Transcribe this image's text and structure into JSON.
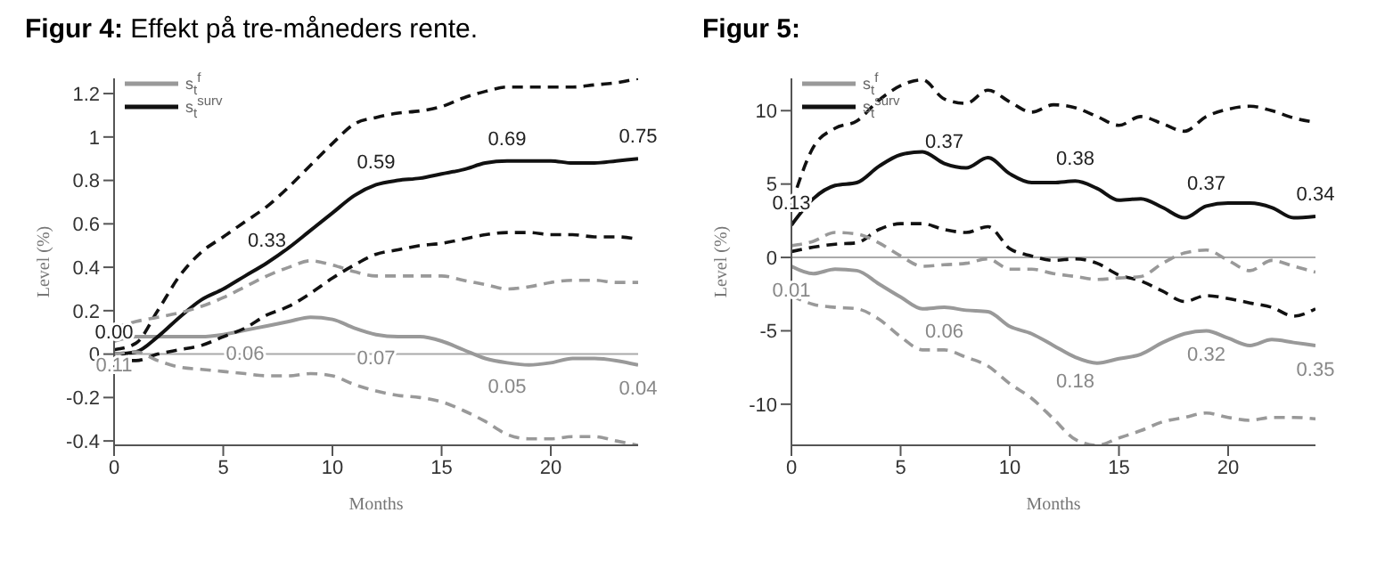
{
  "chart_data": [
    {
      "type": "line",
      "title": "Figur 4: Effekt på tre-måneders rente.",
      "xlabel": "Months",
      "ylabel": "Level (%)",
      "x": [
        0,
        1,
        2,
        3,
        4,
        5,
        6,
        7,
        8,
        9,
        10,
        11,
        12,
        13,
        14,
        15,
        16,
        17,
        18,
        19,
        20,
        21,
        22,
        23,
        24
      ],
      "xlim": [
        0,
        24
      ],
      "xticks": [
        0,
        5,
        10,
        15,
        20
      ],
      "ylim": [
        -0.42,
        1.27
      ],
      "yticks": [
        -0.4,
        -0.2,
        0,
        0.2,
        0.4,
        0.6,
        0.8,
        1,
        1.2
      ],
      "grid": false,
      "legend": "top left",
      "marker": "none",
      "tick_labels": "xy",
      "series": [
        {
          "name": "s$_{t}$$^{f}$",
          "color": "#999999",
          "line_style": "solid",
          "values": [
            0.06,
            0.08,
            0.08,
            0.08,
            0.08,
            0.09,
            0.11,
            0.13,
            0.15,
            0.17,
            0.16,
            0.12,
            0.09,
            0.08,
            0.08,
            0.06,
            0.02,
            -0.02,
            -0.04,
            -0.05,
            -0.04,
            -0.02,
            -0.02,
            -0.03,
            -0.05
          ]
        },
        {
          "name": "s$_{t}$$^{surv}$",
          "color": "#111111",
          "line_style": "solid",
          "values": [
            0.0,
            0.01,
            0.08,
            0.17,
            0.25,
            0.3,
            0.36,
            0.42,
            0.49,
            0.57,
            0.65,
            0.73,
            0.78,
            0.8,
            0.81,
            0.83,
            0.85,
            0.88,
            0.89,
            0.89,
            0.89,
            0.88,
            0.88,
            0.89,
            0.9
          ]
        },
        {
          "color": "#111111",
          "line_style": "dashed",
          "values": [
            0.02,
            0.05,
            0.2,
            0.36,
            0.47,
            0.54,
            0.61,
            0.68,
            0.77,
            0.87,
            0.97,
            1.06,
            1.09,
            1.11,
            1.12,
            1.14,
            1.18,
            1.21,
            1.23,
            1.23,
            1.23,
            1.23,
            1.24,
            1.25,
            1.27
          ]
        },
        {
          "color": "#111111",
          "line_style": "dashed",
          "values": [
            -0.03,
            -0.03,
            0.0,
            0.02,
            0.04,
            0.08,
            0.12,
            0.18,
            0.22,
            0.28,
            0.35,
            0.41,
            0.46,
            0.48,
            0.5,
            0.51,
            0.53,
            0.55,
            0.56,
            0.56,
            0.55,
            0.55,
            0.54,
            0.54,
            0.53
          ]
        },
        {
          "color": "#999999",
          "line_style": "dashed",
          "values": [
            0.12,
            0.15,
            0.17,
            0.19,
            0.22,
            0.26,
            0.31,
            0.36,
            0.4,
            0.43,
            0.41,
            0.38,
            0.36,
            0.36,
            0.36,
            0.36,
            0.34,
            0.32,
            0.3,
            0.31,
            0.33,
            0.34,
            0.34,
            0.33,
            0.33
          ]
        },
        {
          "color": "#999999",
          "line_style": "dashed",
          "values": [
            0.0,
            0.01,
            -0.03,
            -0.06,
            -0.07,
            -0.08,
            -0.09,
            -0.1,
            -0.1,
            -0.09,
            -0.1,
            -0.14,
            -0.17,
            -0.19,
            -0.2,
            -0.22,
            -0.26,
            -0.31,
            -0.37,
            -0.39,
            -0.39,
            -0.38,
            -0.38,
            -0.4,
            -0.42
          ]
        }
      ],
      "ref_lines": [
        {
          "axis": "y",
          "value": 0,
          "color": "#aaaaaa"
        }
      ],
      "annotations": [
        {
          "text": "0.00",
          "x": 0,
          "y": 0.0
        },
        {
          "text": "0.11",
          "x": 0,
          "y": 0.06
        },
        {
          "text": "0.33",
          "x": 7,
          "y": 0.42
        },
        {
          "text": "0.59",
          "x": 12,
          "y": 0.78
        },
        {
          "text": "0.69",
          "x": 18,
          "y": 0.89
        },
        {
          "text": "0.75",
          "x": 24,
          "y": 0.9
        },
        {
          "text": "0.06",
          "x": 6,
          "y": 0.11
        },
        {
          "text": "0.07",
          "x": 12,
          "y": 0.09
        },
        {
          "text": "0.05",
          "x": 18,
          "y": -0.04
        },
        {
          "text": "0.04",
          "x": 24,
          "y": -0.05
        }
      ]
    },
    {
      "type": "line",
      "title": "Figur 5:",
      "xlabel": "Months",
      "ylabel": "Level (%)",
      "x": [
        0,
        1,
        2,
        3,
        4,
        5,
        6,
        7,
        8,
        9,
        10,
        11,
        12,
        13,
        14,
        15,
        16,
        17,
        18,
        19,
        20,
        21,
        22,
        23,
        24
      ],
      "xlim": [
        0,
        24
      ],
      "xticks": [
        0,
        5,
        10,
        15,
        20
      ],
      "ylim": [
        -12.8,
        12.2
      ],
      "yticks": [
        -10,
        -5,
        0,
        5,
        10
      ],
      "grid": false,
      "legend": "top left",
      "marker": "none",
      "tick_labels": "xy",
      "series": [
        {
          "name": "s$_{t}$$^{f}$",
          "color": "#999999",
          "line_style": "solid",
          "values": [
            -0.6,
            -1.1,
            -0.8,
            -0.9,
            -1.8,
            -2.7,
            -3.5,
            -3.4,
            -3.6,
            -3.7,
            -4.7,
            -5.2,
            -6.0,
            -6.8,
            -7.2,
            -6.9,
            -6.6,
            -5.8,
            -5.2,
            -5.0,
            -5.5,
            -6.0,
            -5.6,
            -5.8,
            -6.0
          ]
        },
        {
          "name": "s$_{t}$$^{surv}$",
          "color": "#111111",
          "line_style": "solid",
          "values": [
            2.2,
            4.0,
            4.9,
            5.1,
            6.2,
            7.0,
            7.2,
            6.4,
            6.1,
            6.8,
            5.7,
            5.1,
            5.1,
            5.2,
            4.7,
            3.9,
            4.0,
            3.4,
            2.7,
            3.5,
            3.7,
            3.7,
            3.4,
            2.7,
            2.8
          ]
        },
        {
          "color": "#111111",
          "line_style": "dashed",
          "values": [
            3.6,
            7.5,
            8.8,
            9.3,
            10.7,
            11.7,
            12.1,
            10.8,
            10.5,
            11.4,
            10.6,
            9.9,
            10.4,
            10.2,
            9.6,
            9.0,
            9.6,
            9.1,
            8.6,
            9.6,
            10.1,
            10.3,
            10.0,
            9.5,
            9.2
          ]
        },
        {
          "color": "#111111",
          "line_style": "dashed",
          "values": [
            0.4,
            0.7,
            0.9,
            1.0,
            1.9,
            2.3,
            2.3,
            1.9,
            1.7,
            2.1,
            0.6,
            0.1,
            -0.2,
            -0.1,
            -0.4,
            -1.2,
            -1.6,
            -2.3,
            -3.0,
            -2.6,
            -2.8,
            -3.1,
            -3.4,
            -4.0,
            -3.5
          ]
        },
        {
          "color": "#999999",
          "line_style": "dashed",
          "values": [
            0.8,
            1.1,
            1.7,
            1.6,
            1.0,
            0.1,
            -0.6,
            -0.5,
            -0.4,
            -0.1,
            -0.8,
            -0.8,
            -1.1,
            -1.3,
            -1.5,
            -1.4,
            -1.3,
            -0.4,
            0.3,
            0.5,
            -0.2,
            -0.9,
            -0.2,
            -0.6,
            -1.0
          ]
        },
        {
          "color": "#999999",
          "line_style": "dashed",
          "values": [
            -2.6,
            -3.2,
            -3.4,
            -3.5,
            -4.2,
            -5.4,
            -6.3,
            -6.3,
            -6.8,
            -7.4,
            -8.6,
            -9.6,
            -11.0,
            -12.4,
            -12.8,
            -12.3,
            -11.8,
            -11.2,
            -10.9,
            -10.6,
            -10.9,
            -11.1,
            -10.9,
            -10.9,
            -11.0
          ]
        }
      ],
      "ref_lines": [
        {
          "axis": "y",
          "value": 0,
          "color": "#aaaaaa"
        }
      ],
      "annotations": [
        {
          "text": "0.13",
          "x": 0,
          "y": 2.2
        },
        {
          "text": "0.37",
          "x": 7,
          "y": 6.4
        },
        {
          "text": "0.38",
          "x": 13,
          "y": 5.2
        },
        {
          "text": "0.37",
          "x": 19,
          "y": 3.5
        },
        {
          "text": "0.34",
          "x": 24,
          "y": 2.8
        },
        {
          "text": "0.01",
          "x": 0,
          "y": -0.6
        },
        {
          "text": "0.06",
          "x": 7,
          "y": -3.4
        },
        {
          "text": "0.18",
          "x": 13,
          "y": -6.8
        },
        {
          "text": "0.32",
          "x": 19,
          "y": -5.0
        },
        {
          "text": "0.35",
          "x": 24,
          "y": -6.0
        }
      ]
    }
  ]
}
